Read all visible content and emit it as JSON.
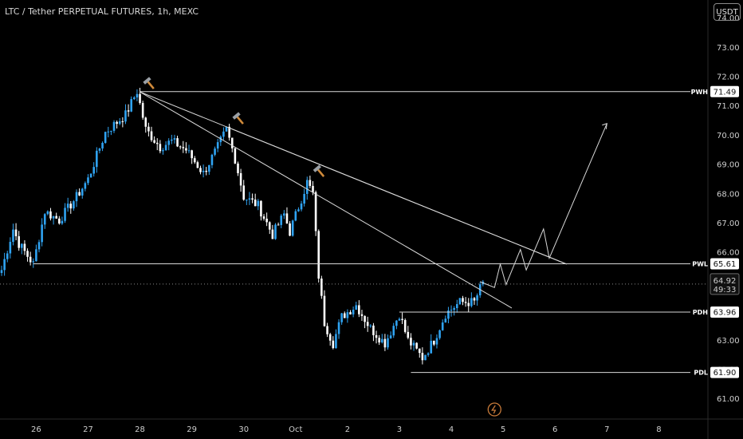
{
  "header": {
    "title": "LTC / Tether PERPETUAL FUTURES, 1h, MEXC",
    "currency": "USDT"
  },
  "colors": {
    "up": "#2fa3f2",
    "down": "#ffffff",
    "background": "#000000",
    "line": "#d9d9d9"
  },
  "chart_data": {
    "type": "candlestick",
    "title": "LTC / Tether PERPETUAL FUTURES, 1h, MEXC",
    "ylim": [
      60.5,
      74.4
    ],
    "x_index_range": [
      0,
      229
    ],
    "y_ticks": [
      "74.00",
      "73.00",
      "72.00",
      "71.00",
      "70.00",
      "69.00",
      "68.00",
      "67.00",
      "66.00",
      "65.00",
      "64.00",
      "63.00",
      "62.00",
      "61.00"
    ],
    "x_ticks": [
      {
        "label": "26",
        "i": 12
      },
      {
        "label": "27",
        "i": 30
      },
      {
        "label": "28",
        "i": 48
      },
      {
        "label": "29",
        "i": 66
      },
      {
        "label": "30",
        "i": 84
      },
      {
        "label": "Oct",
        "i": 102
      },
      {
        "label": "2",
        "i": 120
      },
      {
        "label": "3",
        "i": 138
      },
      {
        "label": "4",
        "i": 156
      },
      {
        "label": "5",
        "i": 174
      },
      {
        "label": "6",
        "i": 192
      },
      {
        "label": "7",
        "i": 210
      },
      {
        "label": "8",
        "i": 228
      }
    ],
    "price_anchors": [
      [
        0,
        65.4
      ],
      [
        4,
        66.8
      ],
      [
        6,
        66.3
      ],
      [
        11,
        65.6
      ],
      [
        15,
        67.4
      ],
      [
        20,
        67.1
      ],
      [
        26,
        67.9
      ],
      [
        30,
        68.5
      ],
      [
        36,
        70.1
      ],
      [
        43,
        70.7
      ],
      [
        47,
        71.5
      ],
      [
        50,
        70.2
      ],
      [
        55,
        69.6
      ],
      [
        59,
        69.8
      ],
      [
        64,
        69.5
      ],
      [
        70,
        68.7
      ],
      [
        75,
        69.6
      ],
      [
        78,
        70.2
      ],
      [
        81,
        69.2
      ],
      [
        84,
        67.9
      ],
      [
        89,
        67.6
      ],
      [
        94,
        66.6
      ],
      [
        98,
        67.3
      ],
      [
        100,
        66.7
      ],
      [
        106,
        68.4
      ],
      [
        108,
        68.0
      ],
      [
        110,
        65.2
      ],
      [
        112,
        63.6
      ],
      [
        115,
        62.9
      ],
      [
        118,
        63.8
      ],
      [
        123,
        64.2
      ],
      [
        128,
        63.4
      ],
      [
        133,
        62.9
      ],
      [
        138,
        63.9
      ],
      [
        141,
        63.0
      ],
      [
        146,
        62.4
      ],
      [
        150,
        63.0
      ],
      [
        154,
        63.9
      ],
      [
        159,
        64.3
      ],
      [
        164,
        64.3
      ],
      [
        167,
        65.0
      ]
    ],
    "levels": [
      {
        "name": "PWH",
        "value": "71.49"
      },
      {
        "name": "PWL",
        "value": "65.61"
      },
      {
        "name": "PDH",
        "value": "63.96"
      },
      {
        "name": "PDL",
        "value": "61.90"
      }
    ],
    "current_price": "64.92",
    "countdown": "49:33",
    "level_data": [
      {
        "name": "PWH",
        "y": 71.49,
        "x_start": 48
      },
      {
        "name": "PWL",
        "y": 65.61,
        "x_start": 11
      },
      {
        "name": "PDH",
        "y": 63.96,
        "x_start": 138
      },
      {
        "name": "PDL",
        "y": 61.9,
        "x_start": 142
      }
    ],
    "trendlines": [
      {
        "from": [
          48,
          71.48
        ],
        "to": [
          196,
          65.6
        ]
      },
      {
        "from": [
          48,
          71.48
        ],
        "to": [
          177,
          64.1
        ]
      },
      {
        "from": [
          79,
          70.25
        ],
        "to": [
          196,
          65.6
        ]
      }
    ],
    "projection_path": [
      [
        166,
        65.0
      ],
      [
        171,
        64.8
      ],
      [
        173,
        65.6
      ],
      [
        175,
        64.9
      ],
      [
        180,
        66.1
      ],
      [
        182,
        65.4
      ],
      [
        188,
        66.8
      ],
      [
        190,
        65.8
      ],
      [
        210,
        70.4
      ]
    ],
    "hammer_markers": [
      {
        "i": 51,
        "y": 71.8
      },
      {
        "i": 82,
        "y": 70.6
      },
      {
        "i": 110,
        "y": 68.8
      }
    ]
  }
}
